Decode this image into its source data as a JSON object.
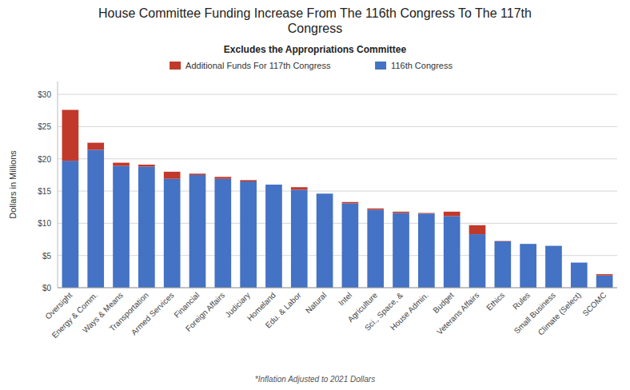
{
  "chart_data": {
    "type": "bar",
    "stacked": true,
    "title": "House Committee Funding Increase From The 116th Congress To The 117th\nCongress",
    "subtitle": "Excludes the Appropriations Committee",
    "footnote": "*Inflation Adjusted to 2021 Dollars",
    "y_label": "Dollars in Millions",
    "categories": [
      "Oversight",
      "Energy & Comm.",
      "Ways & Means",
      "Transportation",
      "Armed Services",
      "Financial",
      "Foreign Affairs",
      "Judiciary",
      "Homeland",
      "Edu. & Labor",
      "Natural",
      "Intel",
      "Agriculture",
      "Sci., Space, &",
      "House Admin.",
      "Budget",
      "Veterans Affairs",
      "Ethics",
      "Rules",
      "Small Business",
      "Climate (Select)",
      "SCOMC"
    ],
    "series": [
      {
        "name": "116th Congress",
        "color": "#4472C4",
        "values": [
          19.7,
          21.4,
          18.9,
          18.8,
          16.9,
          17.5,
          16.9,
          16.5,
          16.0,
          15.2,
          14.6,
          13.1,
          12.1,
          11.6,
          11.5,
          11.1,
          8.3,
          7.2,
          6.8,
          6.5,
          3.9,
          1.9
        ]
      },
      {
        "name": "Additional Funds For 117th Congress",
        "color": "#C0392B",
        "values": [
          7.9,
          1.1,
          0.5,
          0.3,
          1.1,
          0.2,
          0.3,
          0.2,
          0.0,
          0.4,
          0.0,
          0.2,
          0.2,
          0.2,
          0.1,
          0.7,
          1.4,
          0.05,
          0.0,
          0.0,
          0.0,
          0.2
        ]
      }
    ],
    "ylim": [
      0,
      32
    ],
    "yticks": [
      {
        "value": 0,
        "label": "$0"
      },
      {
        "value": 5,
        "label": "$5"
      },
      {
        "value": 10,
        "label": "$10"
      },
      {
        "value": 15,
        "label": "$15"
      },
      {
        "value": 20,
        "label": "$20"
      },
      {
        "value": 25,
        "label": "$25"
      },
      {
        "value": 30,
        "label": "$30"
      }
    ],
    "grid": true,
    "legend": "top"
  }
}
